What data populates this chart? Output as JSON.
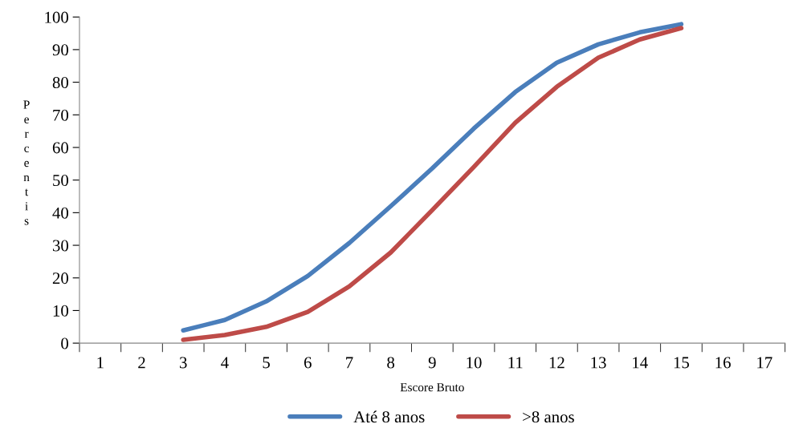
{
  "chart_data": {
    "type": "line",
    "xlabel": "Escore Bruto",
    "ylabel": "Percentis",
    "categories": [
      "1",
      "2",
      "3",
      "4",
      "5",
      "6",
      "7",
      "8",
      "9",
      "10",
      "11",
      "12",
      "13",
      "14",
      "15",
      "16",
      "17"
    ],
    "series": [
      {
        "name": "Até 8 anos",
        "color": "#4a7ebb",
        "values": [
          null,
          null,
          3.9,
          7.1,
          12.8,
          20.6,
          30.7,
          42,
          53.6,
          65.8,
          77,
          86,
          91.6,
          95.3,
          97.8,
          null,
          null
        ]
      },
      {
        "name": ">8 anos",
        "color": "#be4b48",
        "values": [
          null,
          null,
          1,
          2.5,
          5,
          9.6,
          17.4,
          27.8,
          40.8,
          54,
          67.6,
          78.6,
          87.5,
          93.1,
          96.6,
          null,
          null
        ]
      }
    ],
    "ylim": [
      0,
      100
    ],
    "yticks": [
      0,
      10,
      20,
      30,
      40,
      50,
      60,
      70,
      80,
      90,
      100
    ],
    "grid": false,
    "legend": "bottom",
    "marker": "none",
    "line_style": "solid"
  }
}
